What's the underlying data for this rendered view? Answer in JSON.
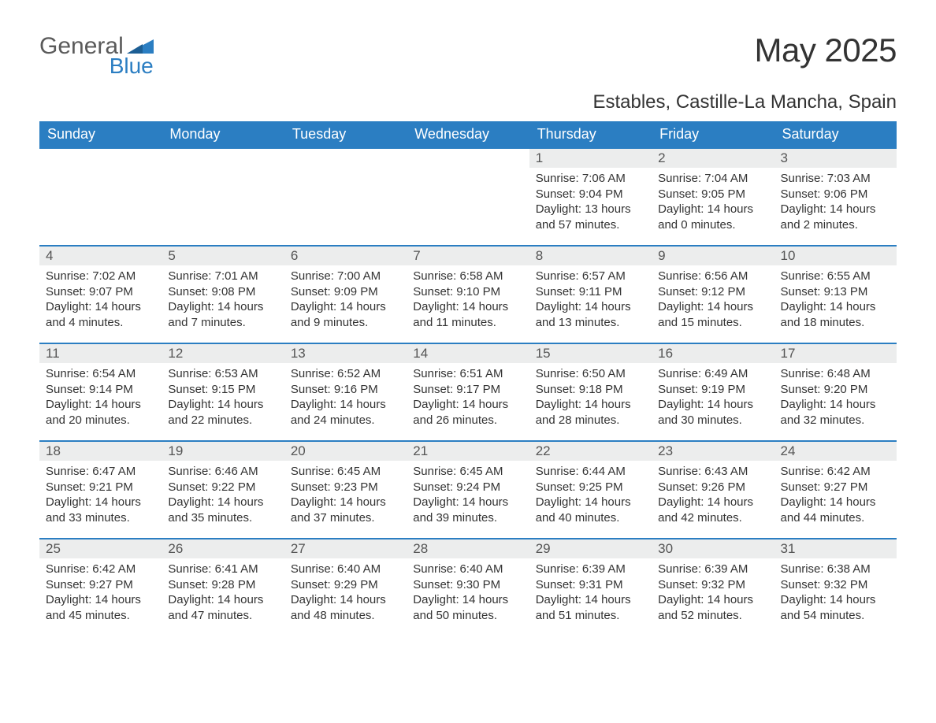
{
  "logo": {
    "text1": "General",
    "text2": "Blue",
    "color_gray": "#5a5a5a",
    "color_blue": "#2b7ec2"
  },
  "title": "May 2025",
  "location": "Estables, Castille-La Mancha, Spain",
  "header_bg": "#2b7ec2",
  "header_fg": "#ffffff",
  "daynum_bg": "#eceded",
  "border_color": "#2b7ec2",
  "weekdays": [
    "Sunday",
    "Monday",
    "Tuesday",
    "Wednesday",
    "Thursday",
    "Friday",
    "Saturday"
  ],
  "weeks": [
    [
      null,
      null,
      null,
      null,
      {
        "d": "1",
        "sunrise": "7:06 AM",
        "sunset": "9:04 PM",
        "daylight": "13 hours and 57 minutes."
      },
      {
        "d": "2",
        "sunrise": "7:04 AM",
        "sunset": "9:05 PM",
        "daylight": "14 hours and 0 minutes."
      },
      {
        "d": "3",
        "sunrise": "7:03 AM",
        "sunset": "9:06 PM",
        "daylight": "14 hours and 2 minutes."
      }
    ],
    [
      {
        "d": "4",
        "sunrise": "7:02 AM",
        "sunset": "9:07 PM",
        "daylight": "14 hours and 4 minutes."
      },
      {
        "d": "5",
        "sunrise": "7:01 AM",
        "sunset": "9:08 PM",
        "daylight": "14 hours and 7 minutes."
      },
      {
        "d": "6",
        "sunrise": "7:00 AM",
        "sunset": "9:09 PM",
        "daylight": "14 hours and 9 minutes."
      },
      {
        "d": "7",
        "sunrise": "6:58 AM",
        "sunset": "9:10 PM",
        "daylight": "14 hours and 11 minutes."
      },
      {
        "d": "8",
        "sunrise": "6:57 AM",
        "sunset": "9:11 PM",
        "daylight": "14 hours and 13 minutes."
      },
      {
        "d": "9",
        "sunrise": "6:56 AM",
        "sunset": "9:12 PM",
        "daylight": "14 hours and 15 minutes."
      },
      {
        "d": "10",
        "sunrise": "6:55 AM",
        "sunset": "9:13 PM",
        "daylight": "14 hours and 18 minutes."
      }
    ],
    [
      {
        "d": "11",
        "sunrise": "6:54 AM",
        "sunset": "9:14 PM",
        "daylight": "14 hours and 20 minutes."
      },
      {
        "d": "12",
        "sunrise": "6:53 AM",
        "sunset": "9:15 PM",
        "daylight": "14 hours and 22 minutes."
      },
      {
        "d": "13",
        "sunrise": "6:52 AM",
        "sunset": "9:16 PM",
        "daylight": "14 hours and 24 minutes."
      },
      {
        "d": "14",
        "sunrise": "6:51 AM",
        "sunset": "9:17 PM",
        "daylight": "14 hours and 26 minutes."
      },
      {
        "d": "15",
        "sunrise": "6:50 AM",
        "sunset": "9:18 PM",
        "daylight": "14 hours and 28 minutes."
      },
      {
        "d": "16",
        "sunrise": "6:49 AM",
        "sunset": "9:19 PM",
        "daylight": "14 hours and 30 minutes."
      },
      {
        "d": "17",
        "sunrise": "6:48 AM",
        "sunset": "9:20 PM",
        "daylight": "14 hours and 32 minutes."
      }
    ],
    [
      {
        "d": "18",
        "sunrise": "6:47 AM",
        "sunset": "9:21 PM",
        "daylight": "14 hours and 33 minutes."
      },
      {
        "d": "19",
        "sunrise": "6:46 AM",
        "sunset": "9:22 PM",
        "daylight": "14 hours and 35 minutes."
      },
      {
        "d": "20",
        "sunrise": "6:45 AM",
        "sunset": "9:23 PM",
        "daylight": "14 hours and 37 minutes."
      },
      {
        "d": "21",
        "sunrise": "6:45 AM",
        "sunset": "9:24 PM",
        "daylight": "14 hours and 39 minutes."
      },
      {
        "d": "22",
        "sunrise": "6:44 AM",
        "sunset": "9:25 PM",
        "daylight": "14 hours and 40 minutes."
      },
      {
        "d": "23",
        "sunrise": "6:43 AM",
        "sunset": "9:26 PM",
        "daylight": "14 hours and 42 minutes."
      },
      {
        "d": "24",
        "sunrise": "6:42 AM",
        "sunset": "9:27 PM",
        "daylight": "14 hours and 44 minutes."
      }
    ],
    [
      {
        "d": "25",
        "sunrise": "6:42 AM",
        "sunset": "9:27 PM",
        "daylight": "14 hours and 45 minutes."
      },
      {
        "d": "26",
        "sunrise": "6:41 AM",
        "sunset": "9:28 PM",
        "daylight": "14 hours and 47 minutes."
      },
      {
        "d": "27",
        "sunrise": "6:40 AM",
        "sunset": "9:29 PM",
        "daylight": "14 hours and 48 minutes."
      },
      {
        "d": "28",
        "sunrise": "6:40 AM",
        "sunset": "9:30 PM",
        "daylight": "14 hours and 50 minutes."
      },
      {
        "d": "29",
        "sunrise": "6:39 AM",
        "sunset": "9:31 PM",
        "daylight": "14 hours and 51 minutes."
      },
      {
        "d": "30",
        "sunrise": "6:39 AM",
        "sunset": "9:32 PM",
        "daylight": "14 hours and 52 minutes."
      },
      {
        "d": "31",
        "sunrise": "6:38 AM",
        "sunset": "9:32 PM",
        "daylight": "14 hours and 54 minutes."
      }
    ]
  ],
  "labels": {
    "sunrise": "Sunrise:",
    "sunset": "Sunset:",
    "daylight": "Daylight:"
  }
}
